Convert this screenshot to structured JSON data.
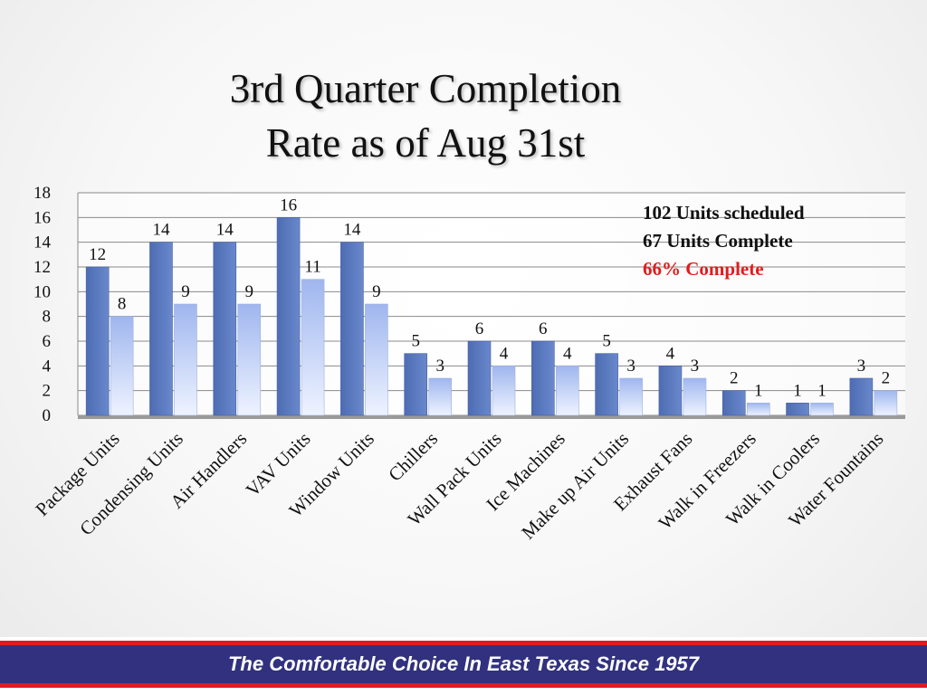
{
  "title_line1": "3rd Quarter Completion",
  "title_line2": "Rate as of Aug 31st",
  "notes": {
    "scheduled": "102 Units scheduled",
    "complete": "67 Units Complete",
    "percent": "66% Complete"
  },
  "footer": "The Comfortable Choice In East Texas Since 1957",
  "colors": {
    "scheduled_bar": "#5b7abf",
    "complete_bar": "#b4c8f4",
    "percent_text": "#e21c1c",
    "footer_band": "#31317f",
    "footer_stripe": "#e01b22"
  },
  "chart_data": {
    "type": "bar",
    "categories": [
      "Package Units",
      "Condensing Units",
      "Air Handlers",
      "VAV Units",
      "Window Units",
      "Chillers",
      "Wall Pack Units",
      "Ice Machines",
      "Make up Air Units",
      "Exhaust Fans",
      "Walk in Freezers",
      "Walk in Coolers",
      "Water Fountains"
    ],
    "series": [
      {
        "values": [
          12,
          14,
          14,
          16,
          14,
          5,
          6,
          6,
          5,
          4,
          2,
          1,
          3
        ]
      },
      {
        "values": [
          8,
          9,
          9,
          11,
          9,
          3,
          4,
          4,
          3,
          3,
          1,
          1,
          2
        ]
      }
    ],
    "ylim": [
      0,
      18
    ],
    "yticks": [
      0,
      2,
      4,
      6,
      8,
      10,
      12,
      14,
      16,
      18
    ],
    "grid": true,
    "data_labels": true
  }
}
